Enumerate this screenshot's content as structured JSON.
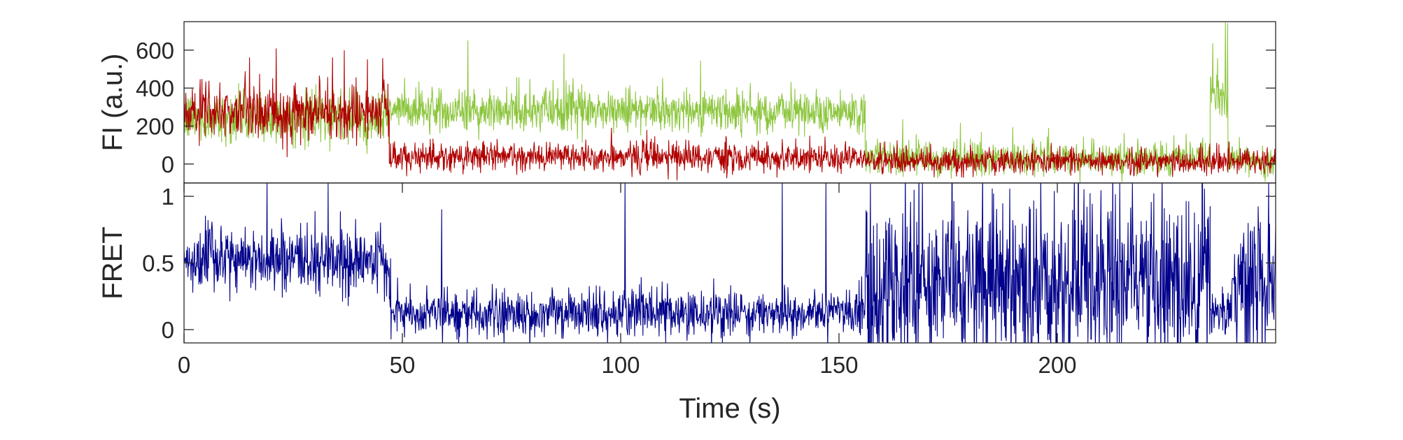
{
  "chart_data": [
    {
      "type": "line",
      "panel": "top",
      "ylabel": "FI (a.u.)",
      "xlim": [
        0,
        250
      ],
      "ylim": [
        -100,
        750
      ],
      "yticks": [
        0,
        200,
        400,
        600
      ],
      "ytick_labels": [
        "0",
        "200",
        "400",
        "600"
      ],
      "grid": false,
      "series": [
        {
          "color": "#8dc63f",
          "segments": [
            {
              "t": [
                0,
                47
              ],
              "mean": 240,
              "noise": 75
            },
            {
              "t": [
                47,
                156
              ],
              "mean": 280,
              "noise": 65
            },
            {
              "t": [
                156,
                235
              ],
              "mean": 30,
              "noise": 50
            },
            {
              "t": [
                235,
                239
              ],
              "mean": 360,
              "noise": 80
            },
            {
              "t": [
                239,
                250
              ],
              "mean": 20,
              "noise": 50
            }
          ],
          "spikes": [
            [
              65,
              650
            ],
            [
              87,
              580
            ],
            [
              238.5,
              760
            ],
            [
              239,
              740
            ]
          ]
        },
        {
          "color": "#b00000",
          "segments": [
            {
              "t": [
                0,
                47
              ],
              "mean": 270,
              "noise": 85
            },
            {
              "t": [
                47,
                156
              ],
              "mean": 35,
              "noise": 45
            },
            {
              "t": [
                156,
                250
              ],
              "mean": 15,
              "noise": 38
            }
          ],
          "spikes": [
            [
              15,
              560
            ],
            [
              34,
              560
            ],
            [
              42,
              550
            ]
          ]
        }
      ]
    },
    {
      "type": "line",
      "panel": "bottom",
      "xlabel": "Time (s)",
      "ylabel": "FRET",
      "xlim": [
        0,
        250
      ],
      "ylim": [
        -0.1,
        1.1
      ],
      "xticks": [
        0,
        50,
        100,
        150,
        200
      ],
      "xtick_labels": [
        "0",
        "50",
        "100",
        "150",
        "200"
      ],
      "yticks": [
        0,
        0.5,
        1
      ],
      "ytick_labels": [
        "0",
        "0.5",
        "1"
      ],
      "grid": false,
      "series": [
        {
          "color": "#00008b",
          "segments": [
            {
              "t": [
                0,
                47
              ],
              "mean": 0.52,
              "noise": 0.14
            },
            {
              "t": [
                47,
                156
              ],
              "mean": 0.12,
              "noise": 0.1
            },
            {
              "t": [
                156,
                235
              ],
              "mean": 0.35,
              "noise": 0.38
            },
            {
              "t": [
                235,
                240
              ],
              "mean": 0.12,
              "noise": 0.1
            },
            {
              "t": [
                240,
                250
              ],
              "mean": 0.35,
              "noise": 0.38
            }
          ],
          "spikes": [
            [
              19,
              1.1
            ],
            [
              33,
              1.1
            ],
            [
              59,
              0.9
            ],
            [
              101,
              1.1
            ],
            [
              137,
              1.1
            ],
            [
              147,
              1.1
            ]
          ]
        }
      ]
    }
  ]
}
